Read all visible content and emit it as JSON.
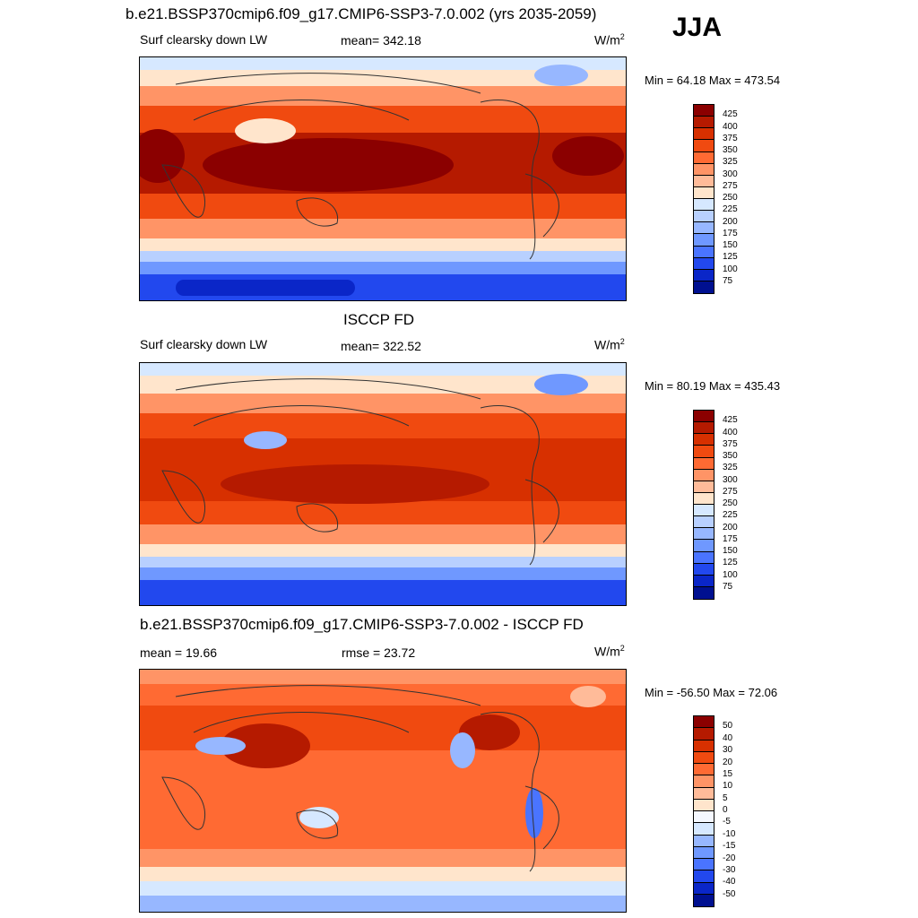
{
  "header": {
    "title": "b.e21.BSSP370cmip6.f09_g17.CMIP6-SSP3-7.0.002 (yrs 2035-2059)",
    "season": "JJA"
  },
  "panels": [
    {
      "title": "",
      "left_label": "Surf clearsky down LW",
      "center_label": "mean= 342.18",
      "units": "W/m",
      "units_sup": "2",
      "minmax": "Min =  64.18 Max = 473.54",
      "colorbar": {
        "labels": [
          "425",
          "400",
          "375",
          "350",
          "325",
          "300",
          "275",
          "250",
          "225",
          "200",
          "175",
          "150",
          "125",
          "100",
          "75"
        ],
        "colors": [
          "#8b0000",
          "#b51a00",
          "#d73000",
          "#f04a10",
          "#ff6a33",
          "#ff9466",
          "#ffbb99",
          "#ffe5cc",
          "#d6e8ff",
          "#b8d0ff",
          "#97b7ff",
          "#6f98ff",
          "#4a74ff",
          "#2248ee",
          "#0a26c8",
          "#001090"
        ]
      }
    },
    {
      "title": "ISCCP FD",
      "left_label": "Surf clearsky down LW",
      "center_label": "mean= 322.52",
      "units": "W/m",
      "units_sup": "2",
      "minmax": "Min =  80.19 Max = 435.43",
      "colorbar": {
        "labels": [
          "425",
          "400",
          "375",
          "350",
          "325",
          "300",
          "275",
          "250",
          "225",
          "200",
          "175",
          "150",
          "125",
          "100",
          "75"
        ],
        "colors": [
          "#8b0000",
          "#b51a00",
          "#d73000",
          "#f04a10",
          "#ff6a33",
          "#ff9466",
          "#ffbb99",
          "#ffe5cc",
          "#d6e8ff",
          "#b8d0ff",
          "#97b7ff",
          "#6f98ff",
          "#4a74ff",
          "#2248ee",
          "#0a26c8",
          "#001090"
        ]
      }
    },
    {
      "title": "b.e21.BSSP370cmip6.f09_g17.CMIP6-SSP3-7.0.002 - ISCCP FD",
      "left_label": "mean =  19.66",
      "center_label": "rmse =  23.72",
      "units": "W/m",
      "units_sup": "2",
      "minmax": "Min = -56.50 Max =  72.06",
      "colorbar": {
        "labels": [
          "50",
          "40",
          "30",
          "20",
          "15",
          "10",
          "5",
          "0",
          "-5",
          "-10",
          "-15",
          "-20",
          "-30",
          "-40",
          "-50"
        ],
        "colors": [
          "#8b0000",
          "#b51a00",
          "#d73000",
          "#f04a10",
          "#ff6a33",
          "#ff9466",
          "#ffbb99",
          "#ffe5cc",
          "#f5f8ff",
          "#d6e8ff",
          "#97b7ff",
          "#6f98ff",
          "#4a74ff",
          "#2248ee",
          "#0a26c8",
          "#001090"
        ]
      }
    }
  ]
}
